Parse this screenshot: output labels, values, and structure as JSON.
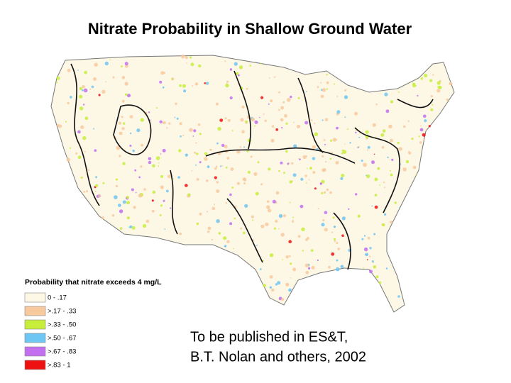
{
  "title": "Nitrate Probability in Shallow Ground Water",
  "legend": {
    "title": "Probability that nitrate exceeds 4 mg/L",
    "items": [
      {
        "label": "0 - .17",
        "color": "#fdf7e6"
      },
      {
        "label": ">.17 - .33",
        "color": "#f8c99c"
      },
      {
        "label": ">.33 - .50",
        "color": "#c6ee3a"
      },
      {
        "label": ">.50 - .67",
        "color": "#6ec6f2"
      },
      {
        "label": ">.67 - .83",
        "color": "#c26ff0"
      },
      {
        "label": ">.83 - 1",
        "color": "#ee1111"
      }
    ]
  },
  "caption": [
    "To be published in ES&T,",
    "B.T. Nolan and others, 2002"
  ]
}
